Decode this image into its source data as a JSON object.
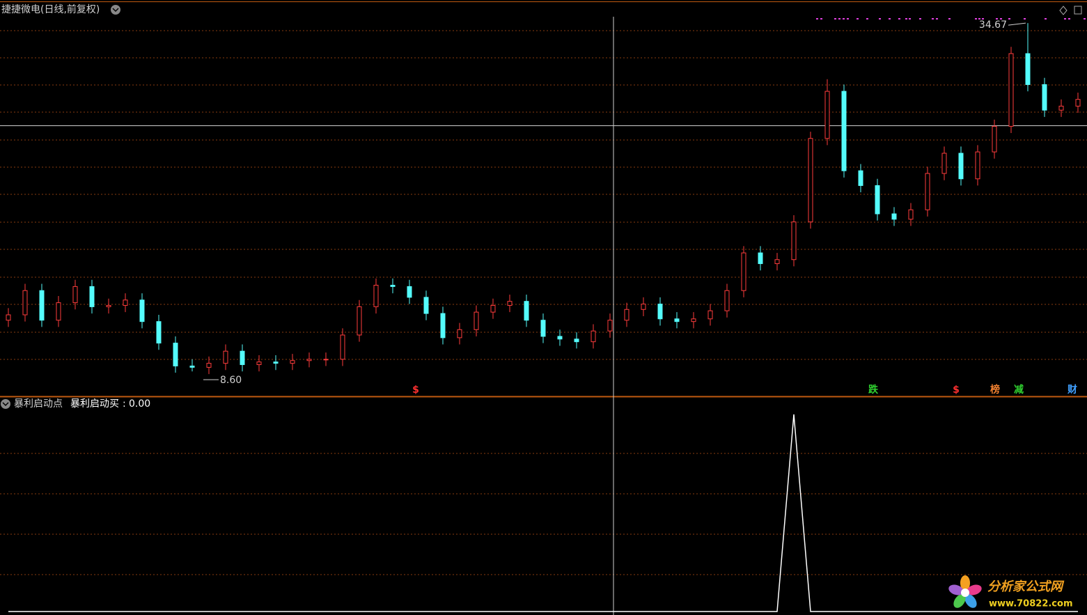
{
  "chart_data": [
    {
      "type": "candlestick",
      "title": "捷捷微电(日线,前复权)",
      "up_color": "#ff3c3c",
      "down_color": "#54fcfc",
      "ylim": [
        7,
        35.14
      ],
      "high_label": "34.67",
      "low_label": "8.60",
      "open": [
        12.6,
        13.0,
        14.8,
        12.6,
        13.9,
        15.1,
        13.6,
        13.7,
        14.1,
        12.5,
        10.9,
        9.2,
        9.1,
        9.4,
        10.3,
        9.3,
        9.5,
        9.4,
        9.6,
        9.7,
        9.7,
        11.5,
        13.6,
        15.2,
        15.1,
        14.3,
        13.1,
        11.3,
        11.9,
        13.2,
        13.7,
        14.0,
        12.6,
        11.4,
        11.2,
        11.0,
        11.8,
        12.6,
        13.4,
        13.8,
        12.7,
        12.5,
        12.7,
        13.3,
        14.8,
        17.6,
        16.8,
        17.1,
        19.9,
        26.1,
        29.6,
        23.7,
        22.6,
        20.5,
        20.1,
        20.8,
        23.5,
        25.0,
        23.1,
        25.1,
        27.0,
        32.4,
        30.1,
        28.2,
        28.5
      ],
      "high": [
        13.5,
        15.3,
        15.3,
        14.4,
        15.6,
        15.6,
        14.2,
        14.6,
        14.6,
        13.0,
        11.4,
        9.7,
        9.9,
        10.8,
        10.8,
        10.0,
        10.0,
        10.1,
        10.2,
        10.2,
        12.0,
        14.1,
        15.7,
        15.7,
        15.6,
        14.8,
        13.6,
        12.4,
        13.7,
        14.2,
        14.5,
        14.5,
        13.1,
        11.9,
        11.7,
        12.3,
        13.1,
        13.9,
        14.3,
        14.3,
        13.2,
        13.2,
        13.8,
        15.3,
        18.1,
        18.1,
        17.6,
        20.4,
        26.6,
        30.5,
        30.1,
        24.2,
        23.1,
        21.0,
        21.3,
        24.0,
        25.5,
        25.5,
        25.6,
        27.5,
        32.9,
        34.67,
        30.6,
        29.0,
        29.5
      ],
      "low": [
        12.1,
        12.5,
        12.1,
        12.1,
        13.4,
        13.1,
        13.1,
        13.2,
        12.0,
        10.4,
        8.7,
        8.8,
        8.6,
        8.9,
        8.8,
        8.8,
        8.9,
        8.9,
        9.1,
        9.2,
        9.2,
        11.0,
        13.1,
        14.6,
        13.8,
        12.6,
        10.8,
        10.8,
        11.4,
        12.7,
        13.2,
        12.1,
        10.9,
        10.7,
        10.5,
        10.5,
        11.3,
        12.1,
        12.9,
        12.2,
        12.0,
        12.0,
        12.2,
        12.8,
        14.3,
        16.3,
        16.3,
        16.6,
        19.4,
        25.6,
        23.2,
        22.1,
        20.0,
        19.6,
        19.6,
        20.3,
        23.0,
        22.6,
        22.6,
        24.6,
        26.5,
        29.6,
        27.7,
        27.7,
        28.0
      ],
      "close": [
        13.0,
        14.8,
        12.6,
        13.9,
        15.1,
        13.6,
        13.7,
        14.1,
        12.5,
        10.9,
        9.2,
        9.1,
        9.4,
        10.3,
        9.3,
        9.5,
        9.4,
        9.6,
        9.7,
        9.7,
        11.5,
        13.6,
        15.2,
        15.1,
        14.3,
        13.1,
        11.3,
        11.9,
        13.2,
        13.7,
        14.0,
        12.6,
        11.4,
        11.2,
        11.0,
        11.8,
        12.6,
        13.4,
        13.8,
        12.7,
        12.5,
        12.7,
        13.3,
        14.8,
        17.6,
        16.8,
        17.1,
        19.9,
        26.1,
        29.6,
        23.7,
        22.6,
        20.5,
        20.1,
        20.8,
        23.5,
        25.0,
        23.1,
        25.1,
        27.0,
        32.4,
        30.1,
        28.2,
        28.5,
        29.0
      ],
      "event_markers": [
        "$",
        "跌",
        "$",
        "榜",
        "减",
        "财"
      ]
    },
    {
      "type": "line",
      "title": "暴利启动点",
      "name": "暴利启动买",
      "value": 0,
      "value_label": "0.00",
      "color": "#ffffff",
      "values": [
        0,
        0,
        0,
        0,
        0,
        0,
        0,
        0,
        0,
        0,
        0,
        0,
        0,
        0,
        0,
        0,
        0,
        0,
        0,
        0,
        0,
        0,
        0,
        0,
        0,
        0,
        0,
        0,
        0,
        0,
        0,
        0,
        0,
        0,
        0,
        0,
        0,
        0,
        0,
        0,
        0,
        0,
        0,
        0,
        0,
        0,
        0,
        1,
        0,
        0,
        0,
        0,
        0,
        0,
        0,
        0,
        0,
        0,
        0,
        0,
        0,
        0,
        0,
        0,
        0
      ]
    }
  ],
  "watermark": {
    "name": "分析家公式网",
    "url": "www.70822.com"
  }
}
